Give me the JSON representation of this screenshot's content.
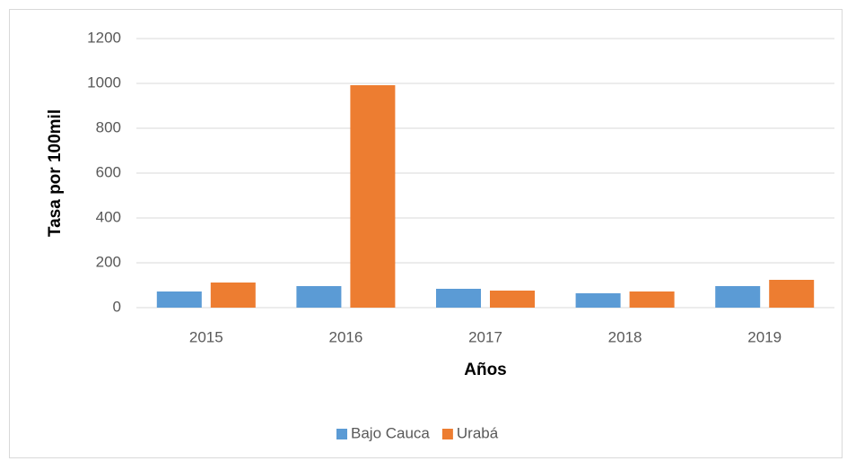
{
  "chart_data": {
    "type": "bar",
    "x_label": "Años",
    "y_label": "Tasa por 100mil",
    "categories": [
      "2015",
      "2016",
      "2017",
      "2018",
      "2019"
    ],
    "series": [
      {
        "name": "Bajo Cauca",
        "color": "#5b9bd5",
        "values": [
          72,
          96,
          84,
          64,
          96
        ]
      },
      {
        "name": "Urabá",
        "color": "#ed7d31",
        "values": [
          112,
          992,
          76,
          72,
          124
        ]
      }
    ],
    "ylim": [
      0,
      1200
    ],
    "yticks": [
      0,
      200,
      400,
      600,
      800,
      1000,
      1200
    ],
    "grid": true,
    "legend": "bottom"
  }
}
